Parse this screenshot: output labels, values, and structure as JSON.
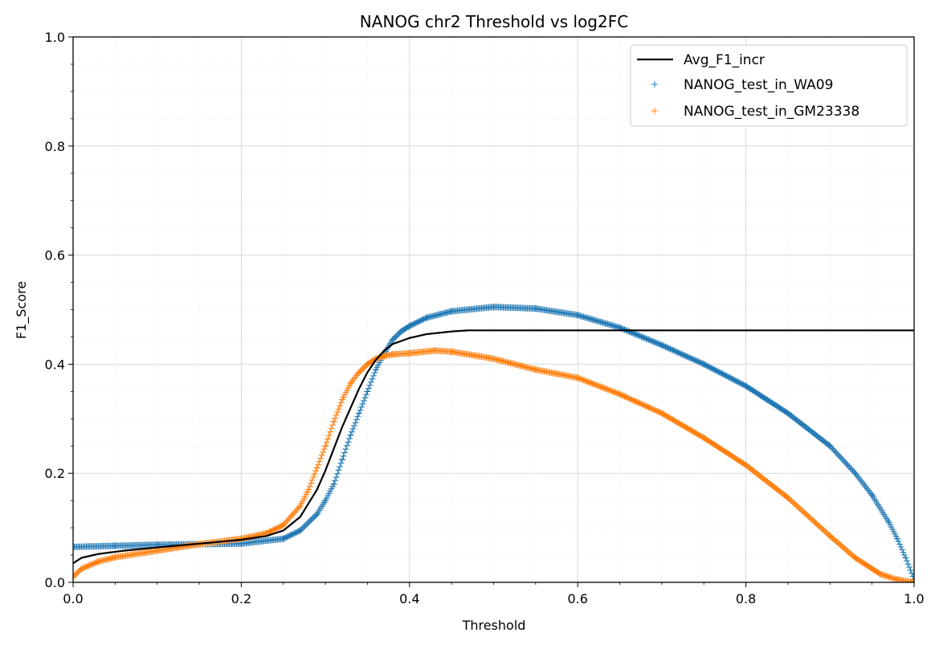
{
  "chart_data": {
    "type": "scatter",
    "title": "NANOG chr2 Threshold vs log2FC",
    "xlabel": "Threshold",
    "ylabel": "F1_Score",
    "xlim": [
      0,
      1
    ],
    "ylim": [
      0,
      1
    ],
    "xticks": [
      "0.0",
      "0.2",
      "0.4",
      "0.6",
      "0.8",
      "1.0"
    ],
    "yticks": [
      "0.0",
      "0.2",
      "0.4",
      "0.6",
      "0.8",
      "1.0"
    ],
    "grid": true,
    "minor_grid": true,
    "legend_position": "top-right",
    "series": [
      {
        "name": "Avg_F1_incr",
        "kind": "line",
        "color": "#000000",
        "x": [
          0.0,
          0.01,
          0.03,
          0.06,
          0.1,
          0.15,
          0.2,
          0.23,
          0.25,
          0.27,
          0.29,
          0.3,
          0.31,
          0.32,
          0.33,
          0.34,
          0.35,
          0.36,
          0.37,
          0.38,
          0.4,
          0.42,
          0.45,
          0.47,
          0.5,
          0.6,
          0.7,
          0.8,
          0.9,
          1.0
        ],
        "y": [
          0.035,
          0.045,
          0.052,
          0.058,
          0.064,
          0.071,
          0.078,
          0.085,
          0.095,
          0.12,
          0.17,
          0.205,
          0.245,
          0.285,
          0.32,
          0.355,
          0.385,
          0.408,
          0.425,
          0.437,
          0.448,
          0.455,
          0.46,
          0.462,
          0.462,
          0.462,
          0.462,
          0.462,
          0.462,
          0.462
        ]
      },
      {
        "name": "NANOG_test_in_WA09",
        "kind": "scatter",
        "marker": "+",
        "color": "#1f77b4",
        "x": [
          0.0,
          0.05,
          0.1,
          0.15,
          0.2,
          0.25,
          0.27,
          0.29,
          0.3,
          0.31,
          0.32,
          0.33,
          0.34,
          0.35,
          0.36,
          0.37,
          0.38,
          0.39,
          0.4,
          0.42,
          0.45,
          0.5,
          0.55,
          0.6,
          0.65,
          0.7,
          0.75,
          0.8,
          0.85,
          0.9,
          0.93,
          0.95,
          0.97,
          0.98,
          0.99,
          1.0
        ],
        "y": [
          0.065,
          0.067,
          0.069,
          0.07,
          0.071,
          0.08,
          0.095,
          0.125,
          0.15,
          0.18,
          0.225,
          0.27,
          0.31,
          0.35,
          0.39,
          0.42,
          0.445,
          0.46,
          0.47,
          0.485,
          0.497,
          0.505,
          0.502,
          0.49,
          0.467,
          0.435,
          0.4,
          0.36,
          0.31,
          0.25,
          0.2,
          0.16,
          0.11,
          0.08,
          0.045,
          0.005
        ]
      },
      {
        "name": "NANOG_test_in_GM23338",
        "kind": "scatter",
        "marker": "+",
        "color": "#ff7f0e",
        "x": [
          0.0,
          0.01,
          0.03,
          0.05,
          0.1,
          0.15,
          0.2,
          0.23,
          0.25,
          0.27,
          0.28,
          0.29,
          0.3,
          0.31,
          0.32,
          0.33,
          0.34,
          0.35,
          0.36,
          0.37,
          0.38,
          0.4,
          0.43,
          0.45,
          0.5,
          0.55,
          0.6,
          0.65,
          0.7,
          0.75,
          0.8,
          0.85,
          0.9,
          0.93,
          0.96,
          0.98,
          1.0
        ],
        "y": [
          0.01,
          0.025,
          0.038,
          0.046,
          0.058,
          0.07,
          0.08,
          0.09,
          0.105,
          0.14,
          0.17,
          0.21,
          0.25,
          0.295,
          0.335,
          0.365,
          0.385,
          0.4,
          0.41,
          0.415,
          0.418,
          0.42,
          0.425,
          0.423,
          0.41,
          0.39,
          0.375,
          0.345,
          0.31,
          0.265,
          0.215,
          0.155,
          0.085,
          0.045,
          0.015,
          0.005,
          0.0
        ]
      }
    ]
  }
}
